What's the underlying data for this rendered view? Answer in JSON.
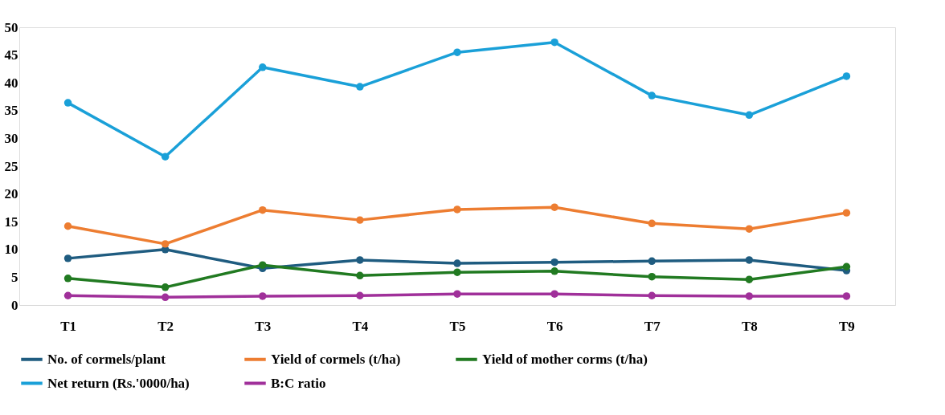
{
  "chart_data": {
    "type": "line",
    "categories": [
      "T1",
      "T2",
      "T3",
      "T4",
      "T5",
      "T6",
      "T7",
      "T8",
      "T9"
    ],
    "ylim": [
      0,
      50
    ],
    "yticks": [
      0,
      5,
      10,
      15,
      20,
      25,
      30,
      35,
      40,
      45,
      50
    ],
    "grid": false,
    "legend": "bottom",
    "marker": "circle",
    "line_style": "solid",
    "series": [
      {
        "name": "No. of cormels/plant",
        "color": "#1f5c80",
        "values": [
          8.4,
          10.0,
          6.6,
          8.1,
          7.5,
          7.7,
          7.9,
          8.1,
          6.2
        ]
      },
      {
        "name": "Yield of cormels (t/ha)",
        "color": "#ed7d31",
        "values": [
          14.2,
          11.0,
          17.1,
          15.3,
          17.2,
          17.6,
          14.7,
          13.7,
          16.6
        ]
      },
      {
        "name": "Yield of mother corms (t/ha)",
        "color": "#217a21",
        "values": [
          4.8,
          3.2,
          7.2,
          5.3,
          5.9,
          6.1,
          5.1,
          4.6,
          6.9
        ]
      },
      {
        "name": "Net return (Rs.'0000/ha)",
        "color": "#1aa0d8",
        "values": [
          36.4,
          26.7,
          42.8,
          39.3,
          45.5,
          47.3,
          37.7,
          34.2,
          41.2
        ]
      },
      {
        "name": "B:C ratio",
        "color": "#a0309a",
        "values": [
          1.7,
          1.4,
          1.6,
          1.7,
          2.0,
          2.0,
          1.7,
          1.6,
          1.6
        ]
      }
    ]
  }
}
